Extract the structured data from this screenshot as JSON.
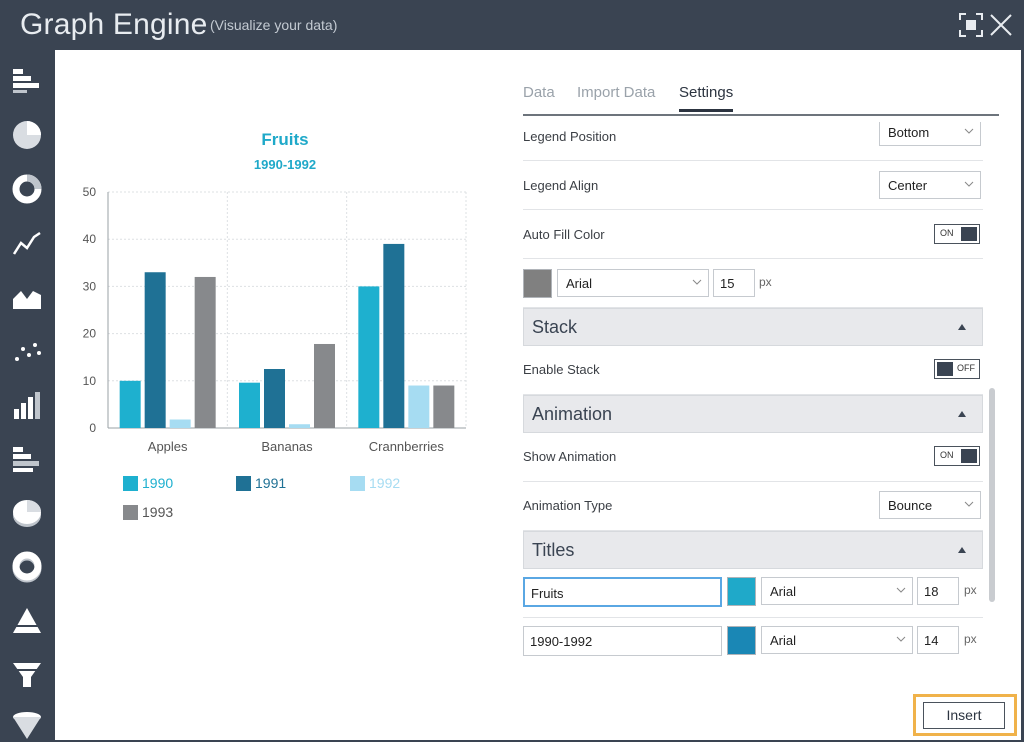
{
  "header": {
    "title": "Graph Engine",
    "subtitle": "(Visualize your data)"
  },
  "sidebar": {
    "icons": [
      "horizontal-bar-chart-icon",
      "pie-chart-icon",
      "donut-chart-icon",
      "line-chart-icon",
      "area-chart-icon",
      "scatter-chart-icon",
      "column-chart-icon",
      "stacked-bar-chart-icon",
      "pie-chart-3d-icon",
      "donut-chart-3d-icon",
      "pyramid-chart-icon",
      "funnel-chart-icon",
      "cone-chart-icon"
    ]
  },
  "tabs": [
    "Data",
    "Import Data",
    "Settings"
  ],
  "active_tab": "Settings",
  "chart_data": {
    "type": "bar",
    "title": "Fruits",
    "subtitle": "1990-1992",
    "categories": [
      "Apples",
      "Bananas",
      "Crannberries"
    ],
    "series": [
      {
        "name": "1990",
        "color": "#1eb0cf",
        "values": [
          10,
          9.6,
          30
        ]
      },
      {
        "name": "1991",
        "color": "#1f7195",
        "values": [
          33,
          12.5,
          39
        ]
      },
      {
        "name": "1992",
        "color": "#a6dcf2",
        "values": [
          1.8,
          0.8,
          9
        ]
      },
      {
        "name": "1993",
        "color": "#87898c",
        "values": [
          32,
          17.8,
          9
        ]
      }
    ],
    "ylim": [
      0,
      50
    ],
    "yticks": [
      "0",
      "10",
      "20",
      "30",
      "40",
      "50"
    ],
    "grid": true,
    "legend": "bottom"
  },
  "settings": {
    "legend_position": {
      "label": "Legend Position",
      "value": "Bottom"
    },
    "legend_align": {
      "label": "Legend Align",
      "value": "Center"
    },
    "auto_fill": {
      "label": "Auto Fill Color",
      "state": "ON"
    },
    "font_row": {
      "color": "#808080",
      "font": "Arial",
      "size": "15",
      "unit": "px"
    },
    "stack_section": "Stack",
    "enable_stack": {
      "label": "Enable Stack",
      "state": "OFF"
    },
    "animation_section": "Animation",
    "show_animation": {
      "label": "Show Animation",
      "state": "ON"
    },
    "animation_type": {
      "label": "Animation Type",
      "value": "Bounce"
    },
    "titles_section": "Titles",
    "title_row": {
      "text": "Fruits",
      "color": "#1fa9c9",
      "font": "Arial",
      "size": "18",
      "unit": "px"
    },
    "subtitle_row": {
      "text": "1990-1992",
      "color": "#1a87b5",
      "font": "Arial",
      "size": "14",
      "unit": "px"
    }
  },
  "insert_label": "Insert"
}
